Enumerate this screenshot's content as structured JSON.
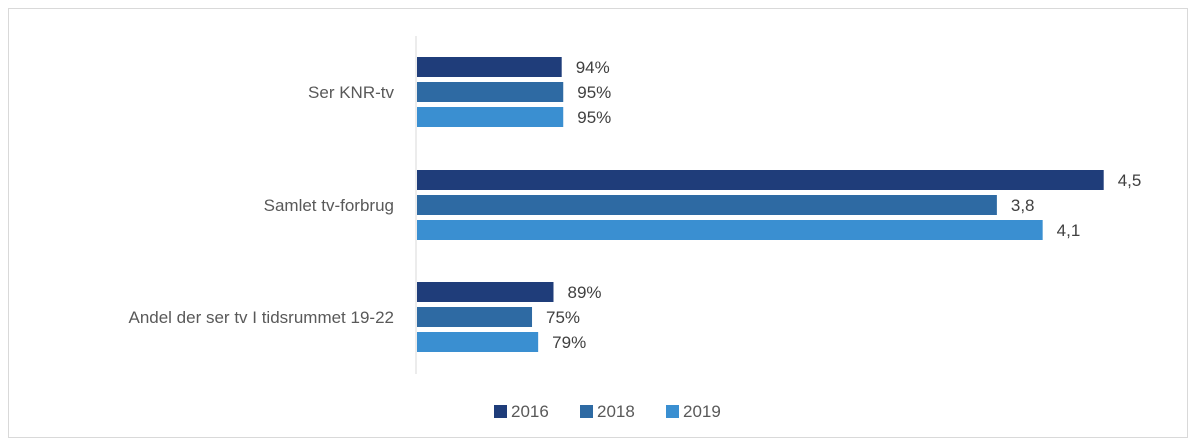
{
  "chart_data": {
    "type": "bar",
    "orientation": "horizontal",
    "categories": [
      "Ser KNR-tv",
      "Samlet tv-forbrug",
      "Andel der ser tv I tidsrummet 19-22"
    ],
    "series": [
      {
        "name": "2016",
        "color": "#1f3d7a",
        "values": [
          94,
          4.5,
          89
        ],
        "labels": [
          "94%",
          "4,5",
          "89%"
        ]
      },
      {
        "name": "2018",
        "color": "#2e6aa3",
        "values": [
          95,
          3.8,
          75
        ],
        "labels": [
          "95%",
          "3,8",
          "75%"
        ]
      },
      {
        "name": "2019",
        "color": "#3a8fd1",
        "values": [
          95,
          4.1,
          79
        ],
        "labels": [
          "95%",
          "4,1",
          "79%"
        ]
      }
    ],
    "title": "",
    "xlabel": "",
    "ylabel": "",
    "grid": false,
    "legend": {
      "position": "bottom",
      "entries": [
        "2016",
        "2018",
        "2019"
      ]
    }
  }
}
